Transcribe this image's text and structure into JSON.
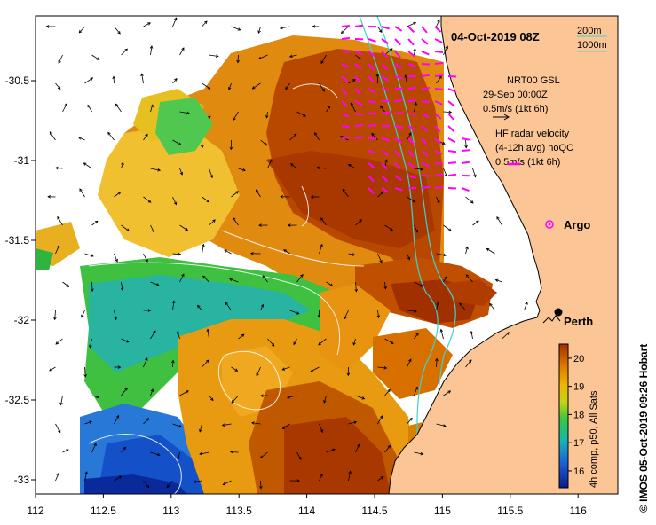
{
  "title": "04-Oct-2019 08Z",
  "depth_legend": {
    "shallow": "200m",
    "deep": "1000m"
  },
  "gsl_note": {
    "line1": "NRT00 GSL",
    "line2": "29-Sep 00:00Z",
    "line3": "0.5m/s (1kt 6h)"
  },
  "hf_note": {
    "line1": "HF radar velocity",
    "line2": "(4-12h avg) noQC",
    "line3": "0.5m/s (1kt 6h)"
  },
  "argo_label": "Argo",
  "city_label": "Perth",
  "colorbar": {
    "ticks": [
      "16",
      "17",
      "18",
      "19",
      "20"
    ],
    "label": "4h comp, p50, All Sats"
  },
  "credit": "© IMOS 05-Oct-2019 09:26 Hobart",
  "x_ticks": [
    "112",
    "112.5",
    "113",
    "113.5",
    "114",
    "114.5",
    "115",
    "115.5",
    "116"
  ],
  "y_ticks": [
    "-30.5",
    "-31",
    "-31.5",
    "-32",
    "-32.5",
    "-33"
  ],
  "colors": {
    "land": "#fbc595",
    "warm": "#b23c00",
    "mid": "#f0a000",
    "green": "#3cbf3c",
    "cool": "#14a08c",
    "cold": "#1450c8",
    "radar_arrow": "#ff00ff",
    "isobath": "#3cd2d2"
  }
}
